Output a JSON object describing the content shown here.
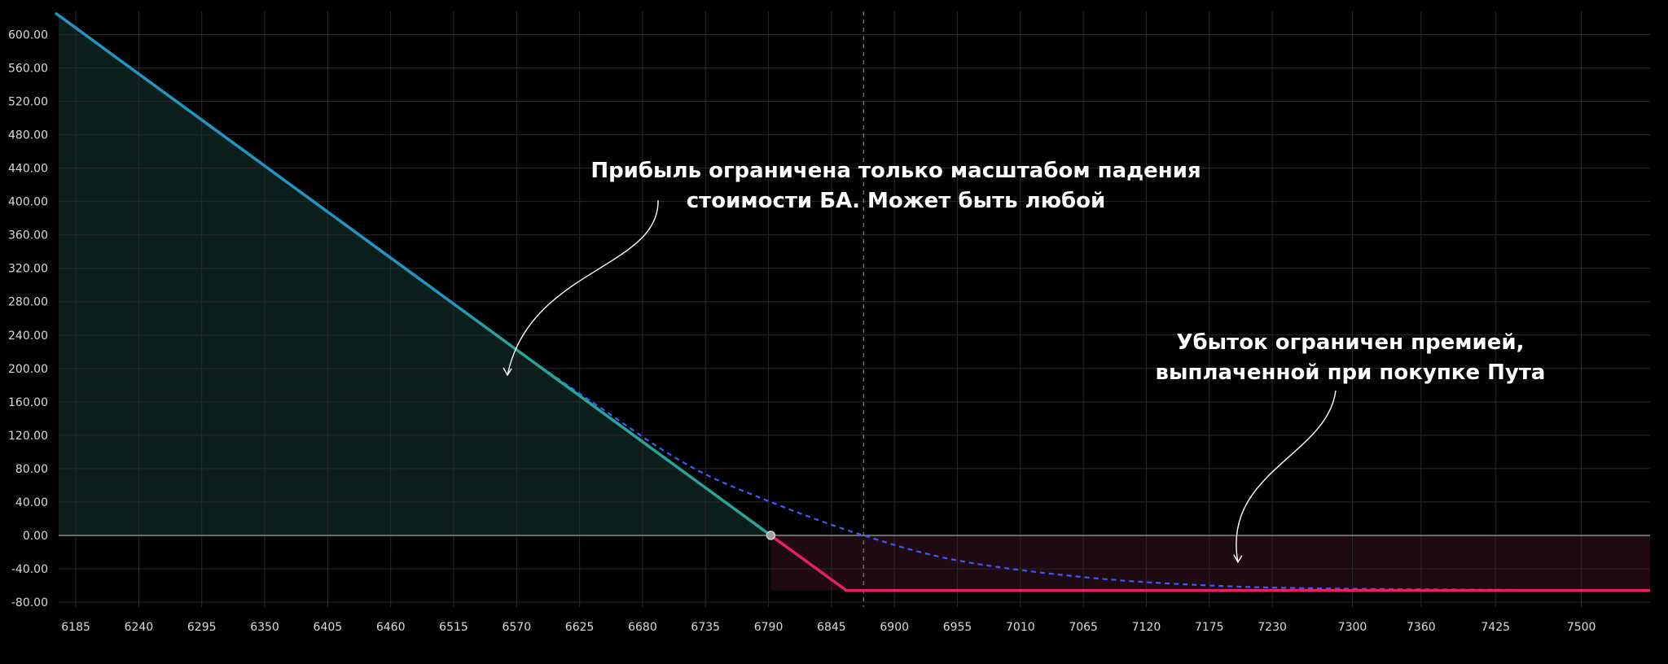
{
  "chart_data": {
    "type": "line",
    "xlim": [
      6170,
      7560
    ],
    "ylim": [
      -80,
      620
    ],
    "x_ticks": [
      6185,
      6240,
      6295,
      6350,
      6405,
      6460,
      6515,
      6570,
      6625,
      6680,
      6735,
      6790,
      6845,
      6900,
      6955,
      7010,
      7065,
      7120,
      7175,
      7230,
      7300,
      7360,
      7425,
      7500
    ],
    "y_ticks": [
      "600.00",
      "560.00",
      "520.00",
      "480.00",
      "440.00",
      "400.00",
      "360.00",
      "320.00",
      "280.00",
      "240.00",
      "200.00",
      "160.00",
      "120.00",
      "80.00",
      "40.00",
      "0.00",
      "-40.00",
      "-80.00"
    ],
    "grid": true,
    "breakeven_point": {
      "x": 6792,
      "y": 0
    },
    "reference_line_x": 6873,
    "series": [
      {
        "style": "solid",
        "points": [
          {
            "x": 6168,
            "y": 625
          },
          {
            "x": 6792,
            "y": 0
          },
          {
            "x": 6858,
            "y": -66
          },
          {
            "x": 7560,
            "y": -66
          }
        ]
      },
      {
        "style": "dashed",
        "points": [
          {
            "x": 6168,
            "y": 625
          },
          {
            "x": 6520,
            "y": 272
          },
          {
            "x": 6640,
            "y": 156
          },
          {
            "x": 6720,
            "y": 84
          },
          {
            "x": 6792,
            "y": 40
          },
          {
            "x": 6873,
            "y": 0
          },
          {
            "x": 6955,
            "y": -30
          },
          {
            "x": 7065,
            "y": -50
          },
          {
            "x": 7175,
            "y": -60
          },
          {
            "x": 7300,
            "y": -64
          },
          {
            "x": 7560,
            "y": -66
          }
        ]
      }
    ],
    "annotations": [
      {
        "lines": [
          "Прибыль ограничена только масштабом падения",
          "стоимости БА. Может быть любой"
        ],
        "arrow_to": {
          "x": 6562,
          "y": 192
        }
      },
      {
        "lines": [
          "Убыток ограничен премией,",
          "выплаченной при покупке Пута"
        ],
        "arrow_to": {
          "x": 7200,
          "y": -32
        }
      }
    ],
    "colors": {
      "background": "#000000",
      "grid": "#2a2a2a",
      "zero_line": "#8a8a8a",
      "profit_line": "#26a69a",
      "profit_line_upper": "#2196c4",
      "loss_line": "#e91e63",
      "dashed_line": "#3d5afe",
      "profit_fill": "#0a1f1c",
      "loss_fill": "#1f0a13",
      "marker_fill": "#9e9e9e",
      "reference_line": "#808080",
      "annotation_text": "#ffffff",
      "tick_text": "#d9d9d9"
    }
  }
}
